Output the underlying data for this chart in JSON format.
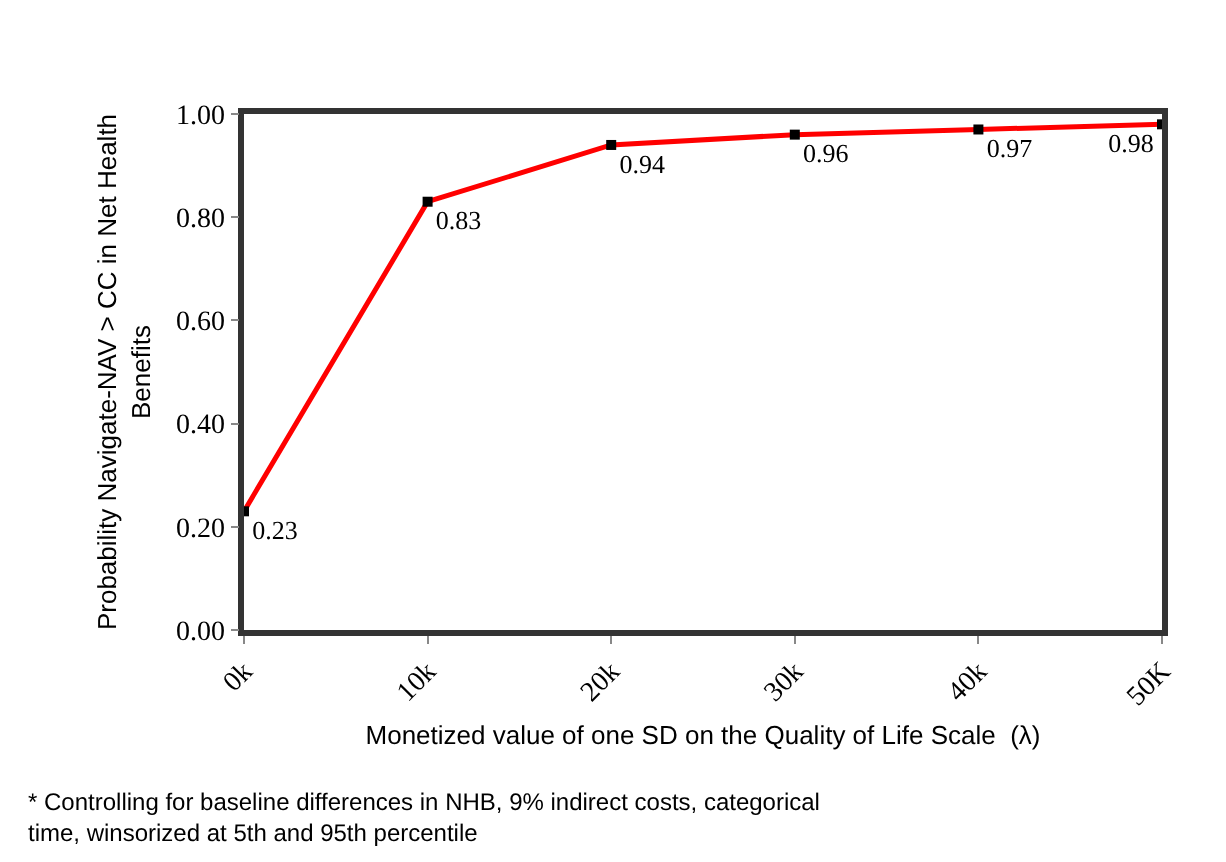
{
  "chart_data": {
    "type": "line",
    "x": [
      0,
      10,
      20,
      30,
      40,
      50
    ],
    "series": [
      {
        "color": "#ff0000",
        "values": [
          0.23,
          0.83,
          0.94,
          0.96,
          0.97,
          0.98
        ]
      }
    ],
    "data_labels": true,
    "marker": "square",
    "line_style": "solid",
    "legend": false,
    "xlim": [
      0,
      50
    ],
    "xticks": [
      {
        "value": 0,
        "label": "0k"
      },
      {
        "value": 10,
        "label": "10k"
      },
      {
        "value": 20,
        "label": "20k"
      },
      {
        "value": 30,
        "label": "30k"
      },
      {
        "value": 40,
        "label": "40k"
      },
      {
        "value": 50,
        "label": "50K"
      }
    ],
    "ylim": [
      0,
      1
    ],
    "yticks": [
      {
        "value": 0,
        "label": "0.00"
      },
      {
        "value": 0.2,
        "label": "0.20"
      },
      {
        "value": 0.4,
        "label": "0.40"
      },
      {
        "value": 0.6,
        "label": "0.60"
      },
      {
        "value": 0.8,
        "label": "0.80"
      },
      {
        "value": 1,
        "label": "1.00"
      }
    ],
    "xlabel": "Monetized value of one SD on the Quality of Life Scale  (λ)",
    "ylabel": "Probability Navigate-NAV > CC in Net Health\nBenefits",
    "annotations": [
      "* Controlling for baseline differences in NHB, 9% indirect costs, categorical\ntime, winsorized at 5th and 95th percentile"
    ]
  }
}
